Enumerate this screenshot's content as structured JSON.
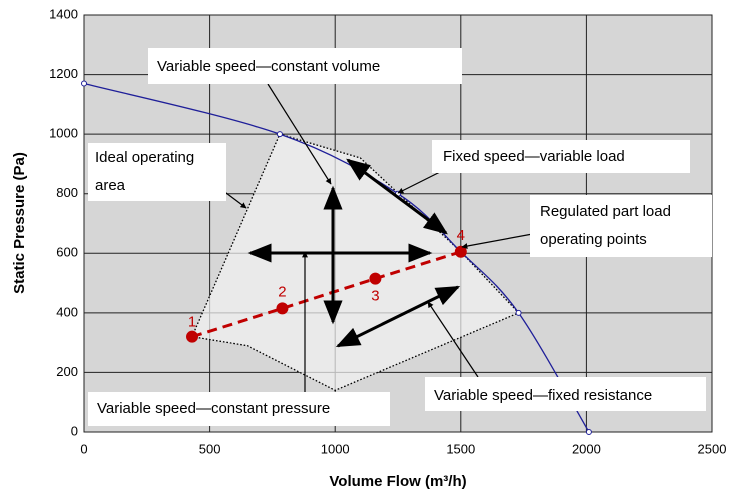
{
  "chart_data": {
    "type": "line",
    "xlabel": "Volume Flow (m³/h)",
    "ylabel": "Static Pressure (Pa)",
    "xlim": [
      0,
      2500
    ],
    "xticks": [
      0,
      500,
      1000,
      1500,
      2000,
      2500
    ],
    "ylim": [
      0,
      1400
    ],
    "yticks": [
      0,
      200,
      400,
      600,
      800,
      1000,
      1200,
      1400
    ],
    "grid": true,
    "series": [
      {
        "color": "#1f1f99",
        "x": [
          0,
          780,
          1250,
          1500,
          1730,
          2010
        ],
        "values": [
          1170,
          1000,
          800,
          605,
          400,
          0
        ]
      },
      {
        "color": "#c00000",
        "x": [
          430,
          790,
          1160,
          1500
        ],
        "values": [
          320,
          415,
          515,
          605
        ]
      }
    ],
    "area": {
      "x": [
        430,
        780,
        1100,
        1500,
        1730,
        1000,
        650
      ],
      "values": [
        320,
        1000,
        920,
        605,
        400,
        140,
        290
      ]
    },
    "point_labels": [
      "1",
      "2",
      "3",
      "4"
    ],
    "annotations": [
      [
        "Variable speed—constant volume"
      ],
      [
        "Ideal operating",
        "area"
      ],
      [
        "Fixed speed—variable load"
      ],
      [
        "Regulated part load",
        "operating points"
      ],
      [
        "Variable speed—constant pressure"
      ],
      [
        "Variable speed—fixed resistance"
      ]
    ]
  }
}
